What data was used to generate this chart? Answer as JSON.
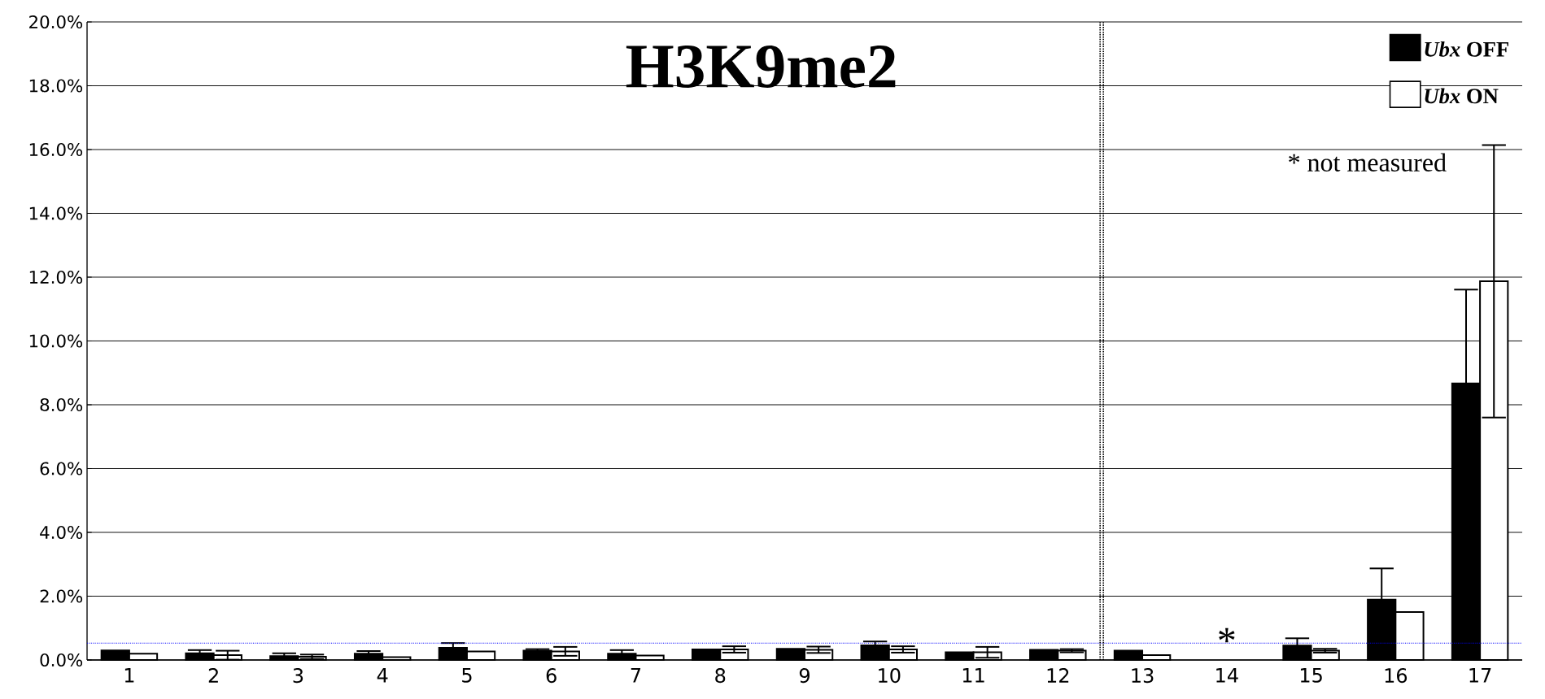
{
  "chart_data": {
    "type": "bar",
    "title": "H3K9me2",
    "categories": [
      "1",
      "2",
      "3",
      "4",
      "5",
      "6",
      "7",
      "8",
      "9",
      "10",
      "11",
      "12",
      "13",
      "14",
      "15",
      "16",
      "17"
    ],
    "series": [
      {
        "name": "*Ubx* OFF",
        "color": "#000000",
        "values": [
          0.3,
          0.21,
          0.12,
          0.2,
          0.38,
          0.29,
          0.2,
          0.33,
          0.35,
          0.46,
          0.24,
          0.32,
          0.29,
          null,
          0.45,
          1.89,
          8.67
        ],
        "errors": [
          null,
          0.1,
          0.09,
          0.08,
          0.15,
          0.05,
          0.11,
          null,
          null,
          0.12,
          null,
          null,
          null,
          null,
          0.23,
          0.98,
          2.94
        ]
      },
      {
        "name": "*Ubx* ON",
        "color": "#ffffff",
        "values": [
          0.2,
          0.15,
          0.1,
          0.09,
          0.27,
          0.27,
          0.14,
          0.33,
          0.32,
          0.33,
          0.24,
          0.29,
          0.15,
          null,
          0.29,
          1.5,
          11.87
        ],
        "errors": [
          null,
          0.14,
          0.07,
          null,
          null,
          0.14,
          null,
          0.1,
          0.1,
          0.1,
          0.17,
          0.05,
          null,
          null,
          0.06,
          null,
          4.27
        ]
      }
    ],
    "ylim": [
      0,
      20
    ],
    "yticks": [
      {
        "value": 0,
        "label": "0.0%"
      },
      {
        "value": 2,
        "label": "2.0%"
      },
      {
        "value": 4,
        "label": "4.0%"
      },
      {
        "value": 6,
        "label": "6.0%"
      },
      {
        "value": 8,
        "label": "8.0%"
      },
      {
        "value": 10,
        "label": "10.0%"
      },
      {
        "value": 12,
        "label": "12.0%"
      },
      {
        "value": 14,
        "label": "14.0%"
      },
      {
        "value": 16,
        "label": "16.0%"
      },
      {
        "value": 18,
        "label": "18.0%"
      },
      {
        "value": 20,
        "label": "20.0%"
      }
    ],
    "grid": "y",
    "legend": "top right",
    "ref_lines": [
      {
        "axis": "y",
        "value": 0.53,
        "color": "#0000ff",
        "line_style": "dotted"
      }
    ],
    "annotations": [
      "* not measured",
      {
        "text": "*",
        "x": "14",
        "y": 0.6
      }
    ]
  }
}
